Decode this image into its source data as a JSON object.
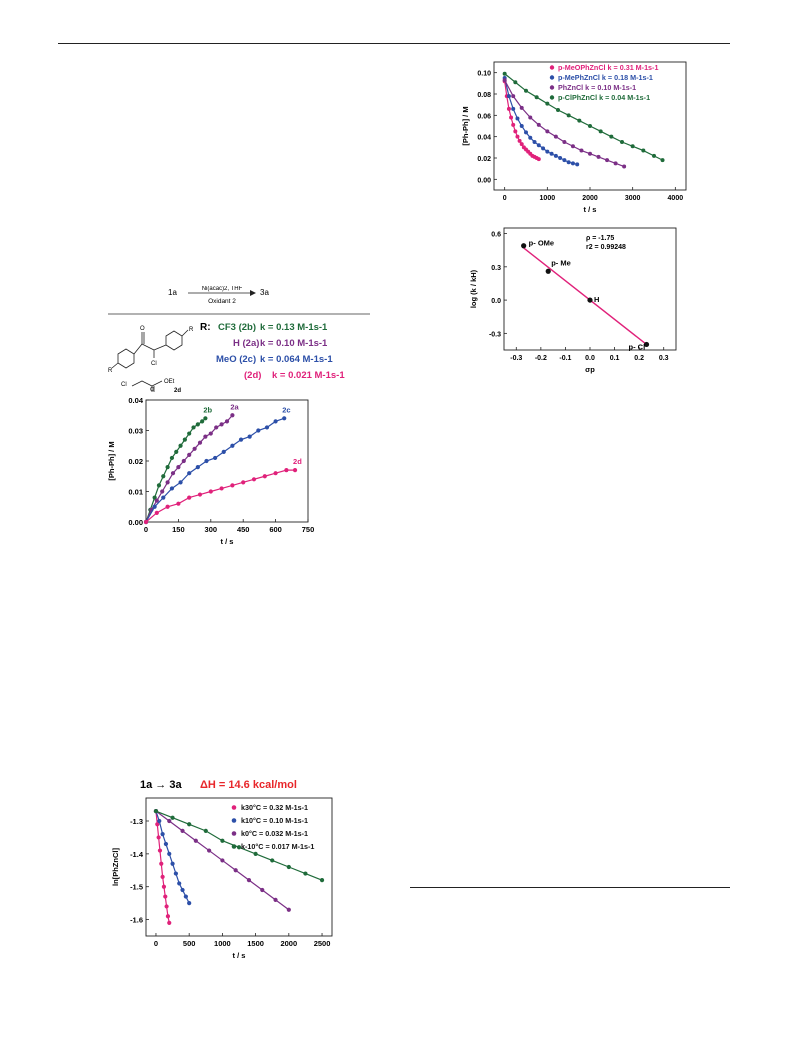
{
  "page": {
    "top_rule": true,
    "bottom_rule": true
  },
  "scheme": {
    "reactant": "1a",
    "product": "3a",
    "reagents_top": "Ni(acac)2, THF",
    "reagents_bottom": "Oxidant 2",
    "r_label": "R:",
    "structure_labels": {
      "R1": "R",
      "R2": "R",
      "O": "O",
      "Cl": "Cl",
      "Cl2": "Cl",
      "O2": "O",
      "OEt": "OEt",
      "cmpd": "2d"
    },
    "rows": [
      {
        "name": "CF3 (2b)",
        "rate": "k = 0.13 M-1s-1",
        "color": "#1f6b3a"
      },
      {
        "name": "H   (2a)",
        "rate": "k = 0.10 M-1s-1",
        "color": "#7b2f86"
      },
      {
        "name": "MeO (2c)",
        "rate": "k = 0.064 M-1s-1",
        "color": "#2c4fa8"
      },
      {
        "name": "(2d)",
        "rate": "k = 0.021 M-1s-1",
        "color": "#e0217a"
      }
    ]
  },
  "colors": {
    "pink": "#e0217a",
    "blue": "#2c4fa8",
    "purple": "#7b2f86",
    "green": "#1f6b3a",
    "red": "#e8262a"
  },
  "chart_data": [
    {
      "id": "oxidant-kinetics",
      "type": "scatter",
      "xlabel": "t / s",
      "ylabel": "[Ph-Ph] / M",
      "xlim": [
        0,
        750
      ],
      "ylim": [
        0,
        0.04
      ],
      "xticks": [
        0,
        150,
        300,
        450,
        600,
        750
      ],
      "yticks": [
        0.0,
        0.01,
        0.02,
        0.03,
        0.04
      ],
      "ytick_labels": [
        "0.00",
        "0.01",
        "0.02",
        "0.03",
        "0.04"
      ],
      "series": [
        {
          "name": "2b",
          "color": "#1f6b3a",
          "x": [
            0,
            20,
            40,
            60,
            80,
            100,
            120,
            140,
            160,
            180,
            200,
            220,
            240,
            260,
            275
          ],
          "y": [
            0,
            0.004,
            0.008,
            0.012,
            0.015,
            0.018,
            0.021,
            0.023,
            0.025,
            0.027,
            0.029,
            0.031,
            0.032,
            0.033,
            0.034
          ]
        },
        {
          "name": "2a",
          "color": "#7b2f86",
          "x": [
            0,
            25,
            50,
            75,
            100,
            125,
            150,
            175,
            200,
            225,
            250,
            275,
            300,
            325,
            350,
            375,
            400
          ],
          "y": [
            0,
            0.004,
            0.007,
            0.01,
            0.013,
            0.016,
            0.018,
            0.02,
            0.022,
            0.024,
            0.026,
            0.028,
            0.029,
            0.031,
            0.032,
            0.033,
            0.035
          ]
        },
        {
          "name": "2c",
          "color": "#2c4fa8",
          "x": [
            0,
            40,
            80,
            120,
            160,
            200,
            240,
            280,
            320,
            360,
            400,
            440,
            480,
            520,
            560,
            600,
            640
          ],
          "y": [
            0,
            0.005,
            0.008,
            0.011,
            0.013,
            0.016,
            0.018,
            0.02,
            0.021,
            0.023,
            0.025,
            0.027,
            0.028,
            0.03,
            0.031,
            0.033,
            0.034
          ]
        },
        {
          "name": "2d",
          "color": "#e0217a",
          "x": [
            0,
            50,
            100,
            150,
            200,
            250,
            300,
            350,
            400,
            450,
            500,
            550,
            600,
            650,
            690
          ],
          "y": [
            0,
            0.003,
            0.005,
            0.006,
            0.008,
            0.009,
            0.01,
            0.011,
            0.012,
            0.013,
            0.014,
            0.015,
            0.016,
            0.017,
            0.017
          ]
        }
      ]
    },
    {
      "id": "substituent-kinetics",
      "type": "scatter",
      "xlabel": "t / s",
      "ylabel": "[Ph-Ph] / M",
      "xlim": [
        -250,
        4250
      ],
      "ylim": [
        -0.01,
        0.11
      ],
      "xticks": [
        0,
        1000,
        2000,
        3000,
        4000
      ],
      "yticks": [
        0.0,
        0.02,
        0.04,
        0.06,
        0.08,
        0.1
      ],
      "ytick_labels": [
        "0.00",
        "0.02",
        "0.04",
        "0.06",
        "0.08",
        "0.10"
      ],
      "legend": [
        {
          "label": "p-MeOPhZnCl k = 0.31 M-1s-1",
          "color": "#e0217a"
        },
        {
          "label": "p-MePhZnCl k = 0.18 M-1s-1",
          "color": "#2c4fa8"
        },
        {
          "label": "PhZnCl k = 0.10 M-1s-1",
          "color": "#7b2f86"
        },
        {
          "label": "p-ClPhZnCl k = 0.04 M-1s-1",
          "color": "#1f6b3a"
        }
      ],
      "series": [
        {
          "name": "p-MeOPhZnCl",
          "color": "#e0217a",
          "x": [
            0,
            50,
            100,
            150,
            200,
            250,
            300,
            350,
            400,
            450,
            500,
            550,
            600,
            650,
            700,
            750,
            800
          ],
          "y": [
            0.092,
            0.078,
            0.066,
            0.058,
            0.051,
            0.045,
            0.04,
            0.036,
            0.033,
            0.03,
            0.028,
            0.026,
            0.024,
            0.022,
            0.021,
            0.02,
            0.019
          ]
        },
        {
          "name": "p-MePhZnCl",
          "color": "#2c4fa8",
          "x": [
            0,
            100,
            200,
            300,
            400,
            500,
            600,
            700,
            800,
            900,
            1000,
            1100,
            1200,
            1300,
            1400,
            1500,
            1600,
            1700
          ],
          "y": [
            0.095,
            0.078,
            0.066,
            0.057,
            0.05,
            0.044,
            0.039,
            0.035,
            0.032,
            0.029,
            0.026,
            0.024,
            0.022,
            0.02,
            0.018,
            0.016,
            0.015,
            0.014
          ]
        },
        {
          "name": "PhZnCl",
          "color": "#7b2f86",
          "x": [
            0,
            200,
            400,
            600,
            800,
            1000,
            1200,
            1400,
            1600,
            1800,
            2000,
            2200,
            2400,
            2600,
            2800
          ],
          "y": [
            0.093,
            0.078,
            0.067,
            0.058,
            0.051,
            0.045,
            0.04,
            0.035,
            0.031,
            0.027,
            0.024,
            0.021,
            0.018,
            0.015,
            0.012
          ]
        },
        {
          "name": "p-ClPhZnCl",
          "color": "#1f6b3a",
          "x": [
            0,
            250,
            500,
            750,
            1000,
            1250,
            1500,
            1750,
            2000,
            2250,
            2500,
            2750,
            3000,
            3250,
            3500,
            3700
          ],
          "y": [
            0.099,
            0.091,
            0.083,
            0.077,
            0.071,
            0.065,
            0.06,
            0.055,
            0.05,
            0.045,
            0.04,
            0.035,
            0.031,
            0.027,
            0.022,
            0.018
          ]
        }
      ]
    },
    {
      "id": "hammett-plot",
      "type": "scatter",
      "xlabel": "σp",
      "ylabel": "log (k / kH)",
      "xlim": [
        -0.35,
        0.35
      ],
      "ylim": [
        -0.45,
        0.65
      ],
      "xticks": [
        -0.3,
        -0.2,
        -0.1,
        0.0,
        0.1,
        0.2,
        0.3
      ],
      "xtick_labels": [
        "-0.3",
        "-0.2",
        "-0.1",
        "0.0",
        "0.1",
        "0.2",
        "0.3"
      ],
      "yticks": [
        -0.3,
        0.0,
        0.3,
        0.6
      ],
      "ytick_labels": [
        "-0.3",
        "0.0",
        "0.3",
        "0.6"
      ],
      "points": [
        {
          "label": "p- OMe",
          "x": -0.27,
          "y": 0.49
        },
        {
          "label": "p- Me",
          "x": -0.17,
          "y": 0.26
        },
        {
          "label": "H",
          "x": 0.0,
          "y": 0.0
        },
        {
          "label": "p- Cl",
          "x": 0.23,
          "y": -0.4
        }
      ],
      "fit": {
        "x": [
          -0.27,
          0.23
        ],
        "y": [
          0.47,
          -0.4
        ]
      },
      "annotation": [
        "ρ = -1.75",
        "r2 = 0.99248"
      ],
      "line_color": "#e0217a"
    },
    {
      "id": "temperature-kinetics",
      "type": "scatter",
      "title": "1a → 3a",
      "title_extra": "ΔH = 14.6 kcal/mol",
      "xlabel": "t / s",
      "ylabel": "ln[PhZnCl]",
      "xlim": [
        -150,
        2650
      ],
      "ylim": [
        -1.65,
        -1.23
      ],
      "xticks": [
        0,
        500,
        1000,
        1500,
        2000,
        2500
      ],
      "yticks": [
        -1.3,
        -1.4,
        -1.5,
        -1.6
      ],
      "ytick_labels": [
        "-1.3",
        "-1.4",
        "-1.5",
        "-1.6"
      ],
      "legend": [
        {
          "label": "k30°C = 0.32 M-1s-1",
          "color": "#e0217a"
        },
        {
          "label": "k10°C = 0.10 M-1s-1",
          "color": "#2c4fa8"
        },
        {
          "label": "k0°C = 0.032 M-1s-1",
          "color": "#7b2f86"
        },
        {
          "label": "k-10°C = 0.017 M-1s-1",
          "color": "#1f6b3a"
        }
      ],
      "series": [
        {
          "name": "30",
          "color": "#e0217a",
          "x": [
            0,
            20,
            40,
            60,
            80,
            100,
            120,
            140,
            160,
            180,
            200
          ],
          "y": [
            -1.27,
            -1.31,
            -1.35,
            -1.39,
            -1.43,
            -1.47,
            -1.5,
            -1.53,
            -1.56,
            -1.59,
            -1.61
          ]
        },
        {
          "name": "10",
          "color": "#2c4fa8",
          "x": [
            0,
            50,
            100,
            150,
            200,
            250,
            300,
            350,
            400,
            450,
            500
          ],
          "y": [
            -1.27,
            -1.3,
            -1.34,
            -1.37,
            -1.4,
            -1.43,
            -1.46,
            -1.49,
            -1.51,
            -1.53,
            -1.55
          ]
        },
        {
          "name": "0",
          "color": "#7b2f86",
          "x": [
            0,
            200,
            400,
            600,
            800,
            1000,
            1200,
            1400,
            1600,
            1800,
            2000
          ],
          "y": [
            -1.27,
            -1.3,
            -1.33,
            -1.36,
            -1.39,
            -1.42,
            -1.45,
            -1.48,
            -1.51,
            -1.54,
            -1.57
          ]
        },
        {
          "name": "-10",
          "color": "#1f6b3a",
          "x": [
            0,
            250,
            500,
            750,
            1000,
            1250,
            1500,
            1750,
            2000,
            2250,
            2500
          ],
          "y": [
            -1.27,
            -1.29,
            -1.31,
            -1.33,
            -1.36,
            -1.38,
            -1.4,
            -1.42,
            -1.44,
            -1.46,
            -1.48
          ]
        }
      ]
    }
  ]
}
